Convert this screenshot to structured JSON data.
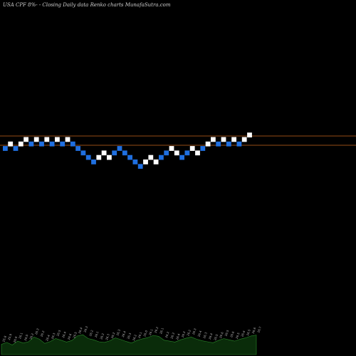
{
  "page": {
    "title": "USA CPF 8%- -  Closing Daily data  Renko  charts MunafaSutra.com"
  },
  "colors": {
    "up": "#ffffff",
    "down": "#1f6fe0",
    "levels": "#c8641e",
    "volume_fill": "#0a2c0a",
    "volume_line": "#2a8a2a"
  },
  "chart_data": {
    "type": "renko",
    "brick_directions": [
      "down",
      "up",
      "down",
      "up",
      "up",
      "down",
      "up",
      "down",
      "up",
      "down",
      "up",
      "down",
      "up",
      "down",
      "down",
      "down",
      "down",
      "down",
      "up",
      "up",
      "up",
      "down",
      "down",
      "down",
      "down",
      "down",
      "down",
      "up",
      "up",
      "up",
      "down",
      "down",
      "up",
      "up",
      "down",
      "down",
      "up",
      "up",
      "down",
      "up",
      "up",
      "down",
      "up",
      "down",
      "up",
      "down",
      "up",
      "up"
    ],
    "brick_levels_px": [
      0,
      -1,
      0,
      -1,
      -2,
      -1,
      -2,
      -1,
      -2,
      -1,
      -2,
      -1,
      -2,
      -1,
      0,
      1,
      2,
      3,
      2,
      1,
      2,
      1,
      0,
      1,
      2,
      3,
      4,
      3,
      2,
      3,
      2,
      1,
      0,
      1,
      2,
      1,
      0,
      1,
      0,
      -1,
      -2,
      -1,
      -2,
      -1,
      -2,
      -1,
      -2,
      -3
    ],
    "horizontal_levels": [
      0,
      -3
    ],
    "volume_profile": [
      0.32,
      0.38,
      0.3,
      0.42,
      0.36,
      0.4,
      0.55,
      0.48,
      0.35,
      0.41,
      0.5,
      0.45,
      0.39,
      0.44,
      0.58,
      0.62,
      0.5,
      0.46,
      0.4,
      0.38,
      0.43,
      0.52,
      0.47,
      0.41,
      0.36,
      0.44,
      0.49,
      0.53,
      0.6,
      0.57,
      0.45,
      0.42,
      0.39,
      0.46,
      0.51,
      0.55,
      0.48,
      0.43,
      0.4,
      0.37,
      0.44,
      0.5,
      0.46,
      0.42,
      0.48,
      0.52,
      0.58,
      0.61
    ],
    "volume_labels": [
      "25.8",
      "25.9",
      "26.0",
      "26.1",
      "26.0",
      "26.2",
      "26.3",
      "26.2",
      "26.4",
      "26.3",
      "26.5",
      "26.4",
      "26.6",
      "26.5",
      "26.4",
      "26.3",
      "26.2",
      "26.1",
      "26.2",
      "26.3",
      "26.2",
      "26.3",
      "26.4",
      "26.3",
      "26.2",
      "26.1",
      "26.0",
      "26.1",
      "26.2",
      "26.1",
      "26.2",
      "26.3",
      "26.4",
      "26.3",
      "26.2",
      "26.3",
      "26.4",
      "26.3",
      "26.4",
      "26.5",
      "26.6",
      "26.5",
      "26.6",
      "26.5",
      "26.6",
      "26.5",
      "26.6",
      "26.7"
    ]
  }
}
